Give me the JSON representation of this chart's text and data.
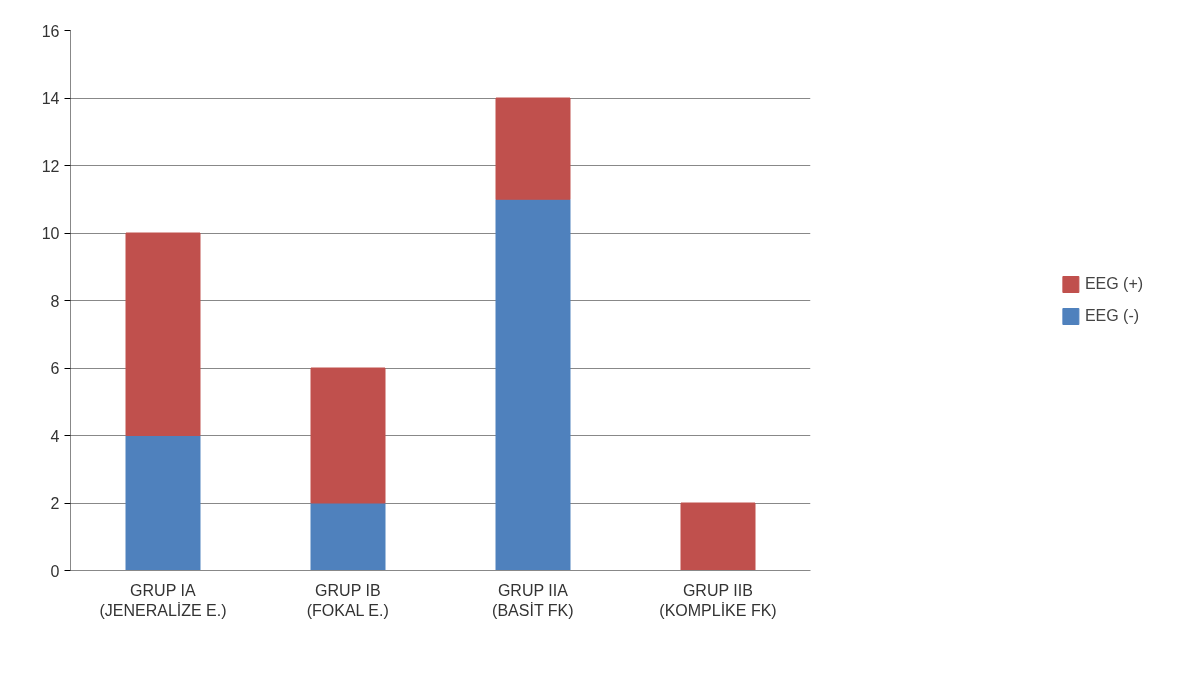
{
  "chart_data": {
    "type": "bar",
    "stacked": true,
    "categories": [
      "GRUP IA\n(JENERALİZE E.)",
      "GRUP IB\n(FOKAL E.)",
      "GRUP IIA\n(BASİT FK)",
      "GRUP IIB\n(KOMPLİKE FK)"
    ],
    "series": [
      {
        "name": "EEG (-)",
        "color": "#4f81bd",
        "values": [
          4,
          2,
          11,
          0
        ]
      },
      {
        "name": "EEG (+)",
        "color": "#c0504d",
        "values": [
          6,
          4,
          3,
          2
        ]
      }
    ],
    "ylim": [
      0,
      16
    ],
    "yticks": [
      0,
      2,
      4,
      6,
      8,
      10,
      12,
      14,
      16
    ],
    "grid": "y",
    "legend": "right"
  }
}
